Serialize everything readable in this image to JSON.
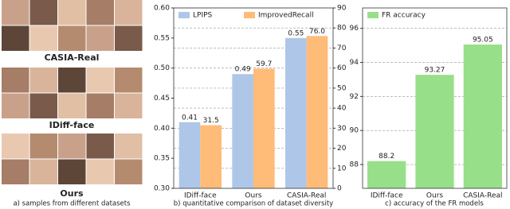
{
  "samples": {
    "groups": [
      "CASIA-Real",
      "IDiff-face",
      "Ours"
    ],
    "caption": "a) samples from different datasets"
  },
  "chart_data": [
    {
      "type": "bar",
      "caption": "b) quantitative comparison of dataset diversity",
      "categories": [
        "IDiff-face",
        "Ours",
        "CASIA-Real"
      ],
      "series": [
        {
          "name": "LPIPS",
          "color": "#aec7e8",
          "values": [
            0.41,
            0.49,
            0.55
          ]
        },
        {
          "name": "ImprovedRecall",
          "color": "#ffbb78",
          "axis": "y2",
          "values": [
            31.5,
            59.7,
            76.0
          ],
          "value_labels": [
            "31.5",
            "59.7",
            "76.0"
          ]
        }
      ],
      "ylim": [
        0.3,
        0.6
      ],
      "yticks": [
        {
          "value": 0.3,
          "label": "0.30"
        },
        0.35,
        {
          "value": 0.4,
          "label": "0.40"
        },
        0.45,
        {
          "value": 0.5,
          "label": "0.50"
        },
        0.55,
        {
          "value": 0.6,
          "label": "0.60"
        }
      ],
      "y2lim": [
        0,
        90
      ],
      "y2ticks": [
        0,
        10,
        20,
        30,
        40,
        50,
        60,
        70,
        80,
        90
      ],
      "grid": true,
      "legend": "upper left"
    },
    {
      "type": "bar",
      "caption": "c) accuracy of the FR models",
      "categories": [
        "IDiff-face",
        "Ours",
        "CASIA-Real"
      ],
      "series": [
        {
          "name": "FR accuracy",
          "color": "#98df8a",
          "values": [
            88.2,
            93.27,
            95.05
          ]
        }
      ],
      "ylim": [
        86.6,
        97.2
      ],
      "yticks": [
        88,
        90,
        92,
        94,
        96
      ],
      "grid": true,
      "legend": "upper left"
    }
  ]
}
